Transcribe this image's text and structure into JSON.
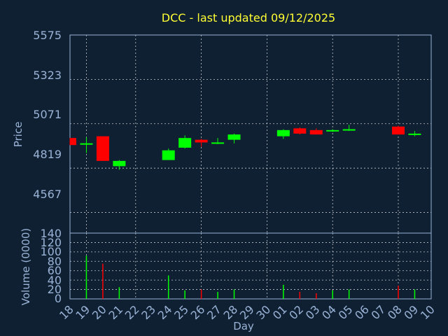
{
  "chart_data": [
    {
      "type": "candlestick",
      "title": "DCC - last updated 09/12/2025",
      "ylabel": "Price",
      "ylim": [
        4450,
        5575
      ],
      "y_ticks": [
        "5575",
        "5323",
        "5071",
        "4819",
        "4567"
      ],
      "grid": true,
      "colors": {
        "up": "#00ff00",
        "down": "#ff0000",
        "background": "#0f2033",
        "text": "#9ab3d6",
        "title": "#ffff33"
      },
      "candles": [
        {
          "day": "18",
          "open": 4990,
          "close": 4950,
          "high": 4990,
          "low": 4950
        },
        {
          "day": "19",
          "open": 4955,
          "close": 4960,
          "high": 4995,
          "low": 4905
        },
        {
          "day": "20",
          "open": 5000,
          "close": 4860,
          "high": 5000,
          "low": 4860
        },
        {
          "day": "21",
          "open": 4830,
          "close": 4860,
          "high": 4865,
          "low": 4810
        },
        {
          "day": "24",
          "open": 4865,
          "close": 4920,
          "high": 4930,
          "low": 4865
        },
        {
          "day": "25",
          "open": 4935,
          "close": 4990,
          "high": 5005,
          "low": 4930
        },
        {
          "day": "26",
          "open": 4980,
          "close": 4965,
          "high": 4985,
          "low": 4940
        },
        {
          "day": "27",
          "open": 4960,
          "close": 4965,
          "high": 4990,
          "low": 4955
        },
        {
          "day": "28",
          "open": 4980,
          "close": 5010,
          "high": 5015,
          "low": 4960
        },
        {
          "day": "01",
          "open": 5000,
          "close": 5035,
          "high": 5040,
          "low": 4985
        },
        {
          "day": "02",
          "open": 5045,
          "close": 5015,
          "high": 5050,
          "low": 5010
        },
        {
          "day": "03",
          "open": 5035,
          "close": 5010,
          "high": 5045,
          "low": 5010
        },
        {
          "day": "04",
          "open": 5030,
          "close": 5035,
          "high": 5040,
          "low": 5025
        },
        {
          "day": "05",
          "open": 5035,
          "close": 5040,
          "high": 5065,
          "low": 5030
        },
        {
          "day": "08",
          "open": 5055,
          "close": 5010,
          "high": 5060,
          "low": 5010
        },
        {
          "day": "09",
          "open": 5010,
          "close": 5015,
          "high": 5030,
          "low": 5000
        }
      ]
    },
    {
      "type": "bar",
      "ylabel": "Volume (0000)",
      "xlabel": "Day",
      "ylim": [
        0,
        140
      ],
      "y_ticks": [
        "140",
        "120",
        "100",
        "80",
        "60",
        "40",
        "20",
        "0"
      ],
      "categories": [
        "18",
        "19",
        "20",
        "21",
        "22",
        "23",
        "24",
        "25",
        "26",
        "27",
        "28",
        "29",
        "30",
        "01",
        "02",
        "03",
        "04",
        "05",
        "06",
        "07",
        "08",
        "09",
        "10"
      ],
      "bars": [
        {
          "day": "19",
          "value": 92,
          "color": "#00ff00"
        },
        {
          "day": "20",
          "value": 75,
          "color": "#ff0000"
        },
        {
          "day": "21",
          "value": 25,
          "color": "#00ff00"
        },
        {
          "day": "24",
          "value": 50,
          "color": "#00ff00"
        },
        {
          "day": "25",
          "value": 18,
          "color": "#00ff00"
        },
        {
          "day": "26",
          "value": 20,
          "color": "#ff0000"
        },
        {
          "day": "27",
          "value": 15,
          "color": "#00ff00"
        },
        {
          "day": "28",
          "value": 20,
          "color": "#00ff00"
        },
        {
          "day": "01",
          "value": 30,
          "color": "#00ff00"
        },
        {
          "day": "02",
          "value": 15,
          "color": "#ff0000"
        },
        {
          "day": "03",
          "value": 12,
          "color": "#ff0000"
        },
        {
          "day": "04",
          "value": 18,
          "color": "#00ff00"
        },
        {
          "day": "05",
          "value": 20,
          "color": "#00ff00"
        },
        {
          "day": "08",
          "value": 28,
          "color": "#ff0000"
        },
        {
          "day": "09",
          "value": 20,
          "color": "#00ff00"
        }
      ]
    }
  ]
}
